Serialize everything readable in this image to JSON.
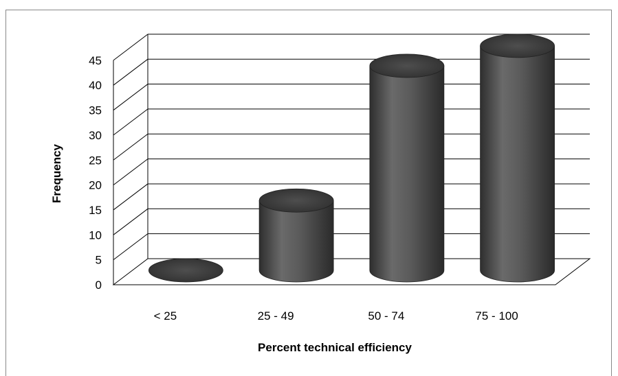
{
  "chart_data": {
    "type": "bar",
    "style": "3d-cylinder",
    "categories": [
      "< 25",
      "25 - 49",
      "50 - 74",
      "75 - 100"
    ],
    "values": [
      0,
      14,
      41,
      45
    ],
    "xlabel": "Percent technical efficiency",
    "ylabel": "Frequency",
    "ylim": [
      0,
      45
    ],
    "yticks": [
      0,
      5,
      10,
      15,
      20,
      25,
      30,
      35,
      40,
      45
    ],
    "grid": true,
    "legend": "none",
    "bar_color": "#4a4a4a"
  }
}
